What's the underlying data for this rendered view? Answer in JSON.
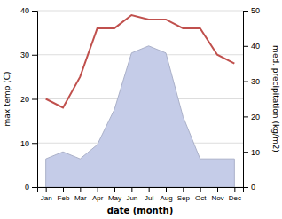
{
  "chart_data": {
    "type": "line",
    "xlabel": "date (month)",
    "ylabel": "max temp (C)",
    "y2label": "med. precipitation (kg/m2)",
    "categories": [
      "Jan",
      "Feb",
      "Mar",
      "Apr",
      "May",
      "Jun",
      "Jul",
      "Aug",
      "Sep",
      "Oct",
      "Nov",
      "Dec"
    ],
    "series": [
      {
        "type": "line",
        "color": "#c0504d",
        "values": [
          20,
          18,
          25,
          36,
          36,
          39,
          38,
          38,
          36,
          36,
          30,
          28
        ]
      },
      {
        "type": "area",
        "axis": "y2",
        "color": "#c5cce8",
        "values": [
          8,
          10,
          8,
          12,
          22,
          38,
          40,
          38,
          20,
          8,
          8,
          8
        ]
      }
    ],
    "ylim": [
      0,
      40
    ],
    "yticks": [
      0,
      10,
      20,
      30,
      40
    ],
    "y2lim": [
      0,
      50
    ],
    "y2ticks": [
      0,
      10,
      20,
      30,
      40,
      50
    ],
    "grid": true
  }
}
